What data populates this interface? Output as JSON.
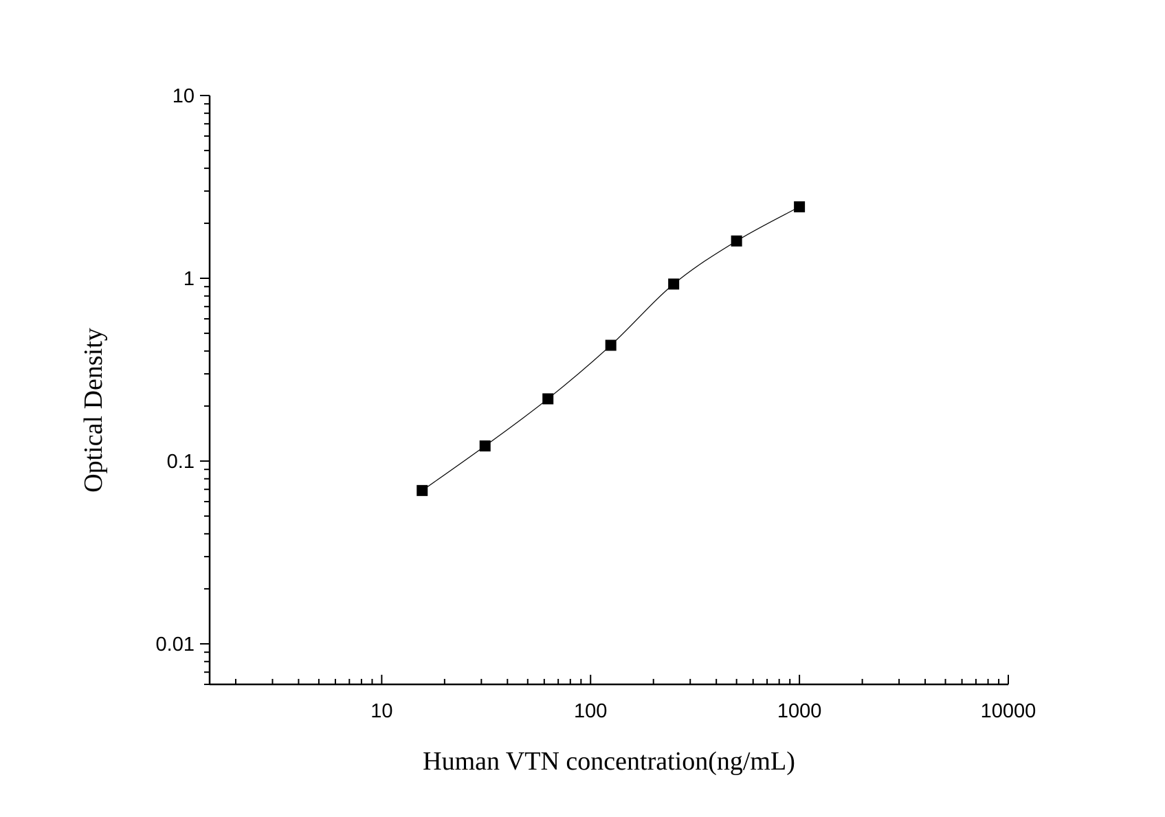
{
  "chart_data": {
    "type": "scatter",
    "title": "",
    "xlabel": "Human VTN concentration(ng/mL)",
    "ylabel": "Optical Density",
    "xscale": "log",
    "yscale": "log",
    "xlim": [
      1.5,
      10000
    ],
    "ylim": [
      0.006,
      10
    ],
    "x_ticks": [
      10,
      100,
      1000,
      10000
    ],
    "x_tick_labels": [
      "10",
      "100",
      "1000",
      "10000"
    ],
    "y_ticks": [
      0.01,
      0.1,
      1,
      10
    ],
    "y_tick_labels": [
      "0.01",
      "0.1",
      "1",
      "10"
    ],
    "grid": false,
    "legend": "none",
    "fit_curve": true,
    "marker": "square",
    "color": "#000000",
    "series": [
      {
        "x": [
          15.625,
          31.25,
          62.5,
          125,
          250,
          500,
          1000
        ],
        "y": [
          0.069,
          0.121,
          0.219,
          0.43,
          0.93,
          1.6,
          2.46
        ]
      }
    ]
  }
}
